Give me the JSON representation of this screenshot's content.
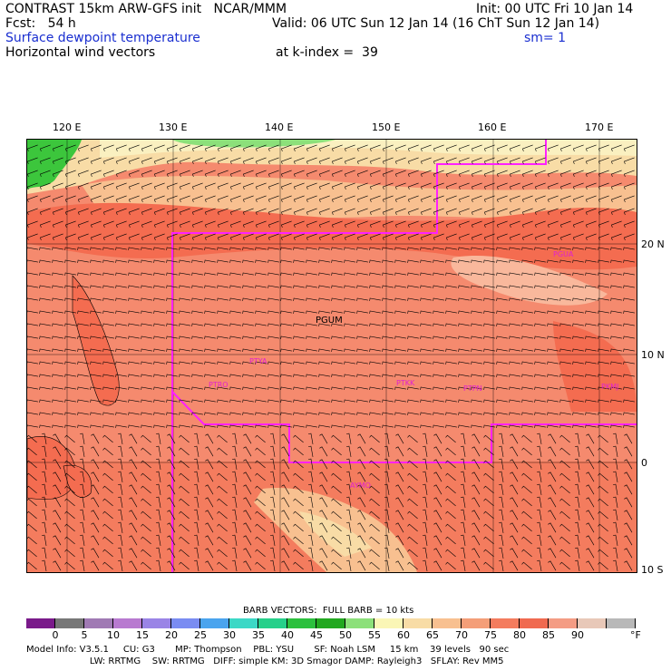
{
  "header": {
    "line1_left": "CONTRAST 15km ARW-GFS init   NCAR/MMM",
    "line1_right": "Init: 00 UTC Fri 10 Jan 14",
    "line2_left": "Fcst:   54 h",
    "line2_right": "Valid: 06 UTC Sun 12 Jan 14 (16 ChT Sun 12 Jan 14)",
    "field_title": "Surface dewpoint temperature",
    "smoothing": "sm= 1",
    "vector_title": "Horizontal wind vectors",
    "level": "at k-index =  39"
  },
  "map": {
    "longitudes": [
      "120 E",
      "130 E",
      "140 E",
      "150 E",
      "160 E",
      "170 E"
    ],
    "latitudes": [
      "20 N",
      "10 N",
      "0",
      "10 S"
    ],
    "region_label": "PGUM",
    "stations": [
      "PGUA",
      "PTYA",
      "PTRO",
      "PTKK",
      "PTPN",
      "PKMJ",
      "AYMO"
    ],
    "colors": {
      "boundary": "#ff20ff",
      "green_low": "#3cc63c",
      "yellow": "#f7e28c",
      "orange": "#f2b98a",
      "red": "#f46c50",
      "salmon": "#f58a6e",
      "pale": "#f9d7b8"
    }
  },
  "colorbar": {
    "title": "BARB VECTORS:  FULL BARB = 10 kts",
    "ticks": [
      "0",
      "5",
      "10",
      "15",
      "20",
      "25",
      "30",
      "35",
      "40",
      "45",
      "50",
      "55",
      "60",
      "65",
      "70",
      "75",
      "80",
      "85",
      "90"
    ],
    "unit": "°F",
    "colors": [
      "#7a1a8a",
      "#777777",
      "#a07ab4",
      "#b87ad0",
      "#9a84e6",
      "#7a8cf2",
      "#4aa4ee",
      "#3cd8c6",
      "#26d08a",
      "#2cc03e",
      "#22a820",
      "#8ce07a",
      "#faf6b6",
      "#f8dca6",
      "#f8c090",
      "#f49e78",
      "#f47c5e",
      "#f06a50",
      "#f49c84",
      "#e8c8b8",
      "#b8b8b8"
    ]
  },
  "footer": {
    "line1": "Model Info: V3.5.1     CU: G3       MP: Thompson    PBL: YSU       SF: Noah LSM     15 km    39 levels   90 sec",
    "line2": "                      LW: RRTMG    SW: RRTMG   DIFF: simple KM: 3D Smagor DAMP: Rayleigh3   SFLAY: Rev MM5"
  }
}
